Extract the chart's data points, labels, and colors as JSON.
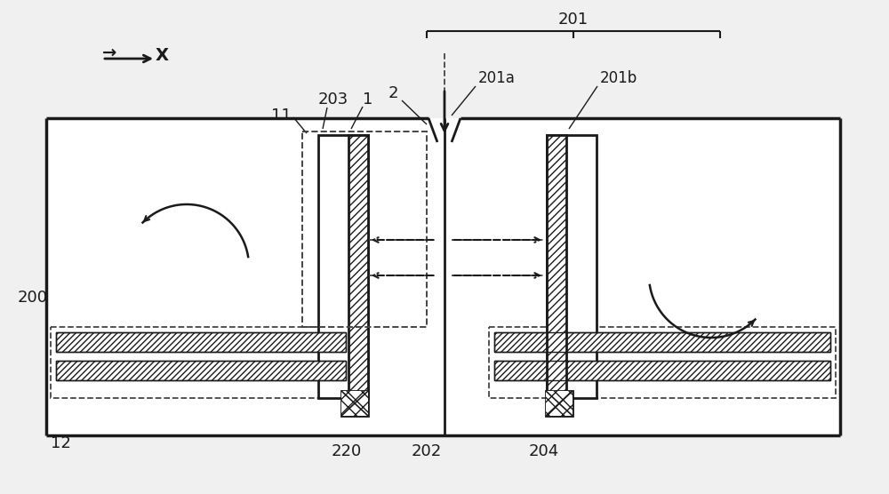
{
  "bg_color": "#f0f0f0",
  "line_color": "#1a1a1a",
  "dashed_color": "#444444",
  "fig_width": 10.0,
  "fig_height": 5.56,
  "labels": {
    "X_arrow": "X",
    "label_200": "200",
    "label_11": "11",
    "label_12": "12",
    "label_1": "1",
    "label_2": "2",
    "label_201": "201",
    "label_201a": "201a",
    "label_201b": "201b",
    "label_202": "202",
    "label_203": "203",
    "label_204": "204",
    "label_220": "220"
  }
}
